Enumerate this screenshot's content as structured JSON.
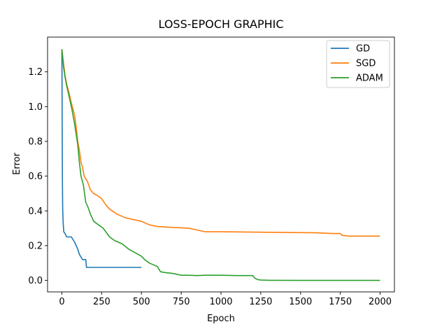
{
  "chart_data": {
    "type": "line",
    "title": "LOSS-EPOCH GRAPHIC",
    "xlabel": "Epoch",
    "ylabel": "Error",
    "xlim": [
      -90,
      2090
    ],
    "ylim": [
      -0.066,
      1.4
    ],
    "xticks": [
      0,
      250,
      500,
      750,
      1000,
      1250,
      1500,
      1750,
      2000
    ],
    "yticks": [
      0.0,
      0.2,
      0.4,
      0.6,
      0.8,
      1.0,
      1.2
    ],
    "xtick_labels": [
      "0",
      "250",
      "500",
      "750",
      "1000",
      "1250",
      "1500",
      "1750",
      "2000"
    ],
    "ytick_labels": [
      "0.0",
      "0.2",
      "0.4",
      "0.6",
      "0.8",
      "1.0",
      "1.2"
    ],
    "grid": false,
    "legend_position": "top-right",
    "series": [
      {
        "name": "GD",
        "color": "#1f77b4",
        "x": [
          0,
          3,
          5,
          8,
          12,
          20,
          30,
          40,
          60,
          80,
          100,
          110,
          130,
          150,
          155,
          160,
          200,
          300,
          400,
          500
        ],
        "y": [
          1.33,
          0.6,
          0.42,
          0.33,
          0.28,
          0.27,
          0.25,
          0.25,
          0.25,
          0.22,
          0.18,
          0.15,
          0.12,
          0.12,
          0.075,
          0.075,
          0.075,
          0.075,
          0.075,
          0.075
        ]
      },
      {
        "name": "SGD",
        "color": "#ff7f0e",
        "x": [
          0,
          10,
          20,
          30,
          45,
          60,
          80,
          90,
          100,
          110,
          120,
          130,
          140,
          160,
          180,
          200,
          220,
          250,
          280,
          300,
          350,
          400,
          450,
          500,
          550,
          600,
          700,
          800,
          850,
          900,
          1000,
          1200,
          1400,
          1600,
          1700,
          1750,
          1760,
          1800,
          2000
        ],
        "y": [
          1.33,
          1.25,
          1.18,
          1.13,
          1.08,
          1.02,
          0.95,
          0.88,
          0.8,
          0.75,
          0.68,
          0.65,
          0.6,
          0.57,
          0.52,
          0.5,
          0.49,
          0.47,
          0.43,
          0.41,
          0.38,
          0.36,
          0.35,
          0.34,
          0.32,
          0.31,
          0.305,
          0.3,
          0.29,
          0.28,
          0.28,
          0.278,
          0.276,
          0.274,
          0.27,
          0.27,
          0.26,
          0.255,
          0.255
        ]
      },
      {
        "name": "ADAM",
        "color": "#2ca02c",
        "x": [
          0,
          10,
          20,
          30,
          40,
          60,
          80,
          100,
          110,
          120,
          135,
          150,
          165,
          180,
          200,
          230,
          260,
          300,
          330,
          380,
          420,
          460,
          500,
          520,
          550,
          600,
          620,
          650,
          700,
          750,
          800,
          850,
          900,
          1000,
          1100,
          1200,
          1210,
          1230,
          1250,
          1300,
          1500,
          1700,
          2000
        ],
        "y": [
          1.33,
          1.23,
          1.17,
          1.12,
          1.08,
          1.0,
          0.9,
          0.78,
          0.68,
          0.6,
          0.55,
          0.45,
          0.42,
          0.38,
          0.34,
          0.32,
          0.3,
          0.25,
          0.23,
          0.21,
          0.18,
          0.16,
          0.14,
          0.12,
          0.1,
          0.08,
          0.05,
          0.045,
          0.04,
          0.03,
          0.03,
          0.028,
          0.03,
          0.03,
          0.028,
          0.028,
          0.015,
          0.005,
          0.002,
          0.001,
          0.0,
          0.0,
          0.0
        ]
      }
    ]
  }
}
